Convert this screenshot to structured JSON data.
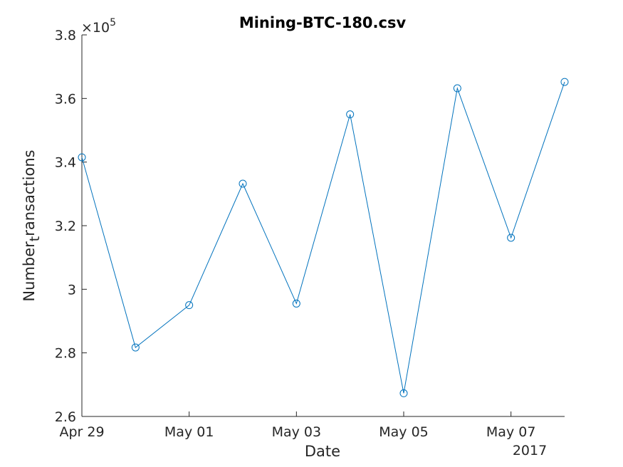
{
  "chart_data": {
    "type": "line",
    "title": "Mining-BTC-180.csv",
    "xlabel": "Date",
    "ylabel_main": "Number",
    "ylabel_sub": "t",
    "ylabel_rest": "ransactions",
    "y_exponent_prefix": "×10",
    "y_exponent_power": "5",
    "x_year_label": "2017",
    "x": [
      "2017-04-29",
      "2017-04-30",
      "2017-05-01",
      "2017-05-02",
      "2017-05-03",
      "2017-05-04",
      "2017-05-05",
      "2017-05-06",
      "2017-05-07",
      "2017-05-08"
    ],
    "series": [
      {
        "values": [
          341500,
          281700,
          295000,
          333200,
          295500,
          355000,
          267300,
          363200,
          316200,
          365200
        ]
      }
    ],
    "xlim": [
      "2017-04-29",
      "2017-05-08"
    ],
    "ylim": [
      260000,
      380000
    ],
    "x_ticks": [
      {
        "date": "2017-04-29",
        "label": "Apr 29"
      },
      {
        "date": "2017-05-01",
        "label": "May 01"
      },
      {
        "date": "2017-05-03",
        "label": "May 03"
      },
      {
        "date": "2017-05-05",
        "label": "May 05"
      },
      {
        "date": "2017-05-07",
        "label": "May 07"
      }
    ],
    "y_ticks": [
      {
        "value": 260000,
        "label": "2.6"
      },
      {
        "value": 280000,
        "label": "2.8"
      },
      {
        "value": 300000,
        "label": "3"
      },
      {
        "value": 320000,
        "label": "3.2"
      },
      {
        "value": 340000,
        "label": "3.4"
      },
      {
        "value": 360000,
        "label": "3.6"
      },
      {
        "value": 380000,
        "label": "3.8"
      }
    ],
    "line_color": "#0072bd",
    "axis_color": "#262626",
    "grid": false,
    "marker": "circle"
  }
}
